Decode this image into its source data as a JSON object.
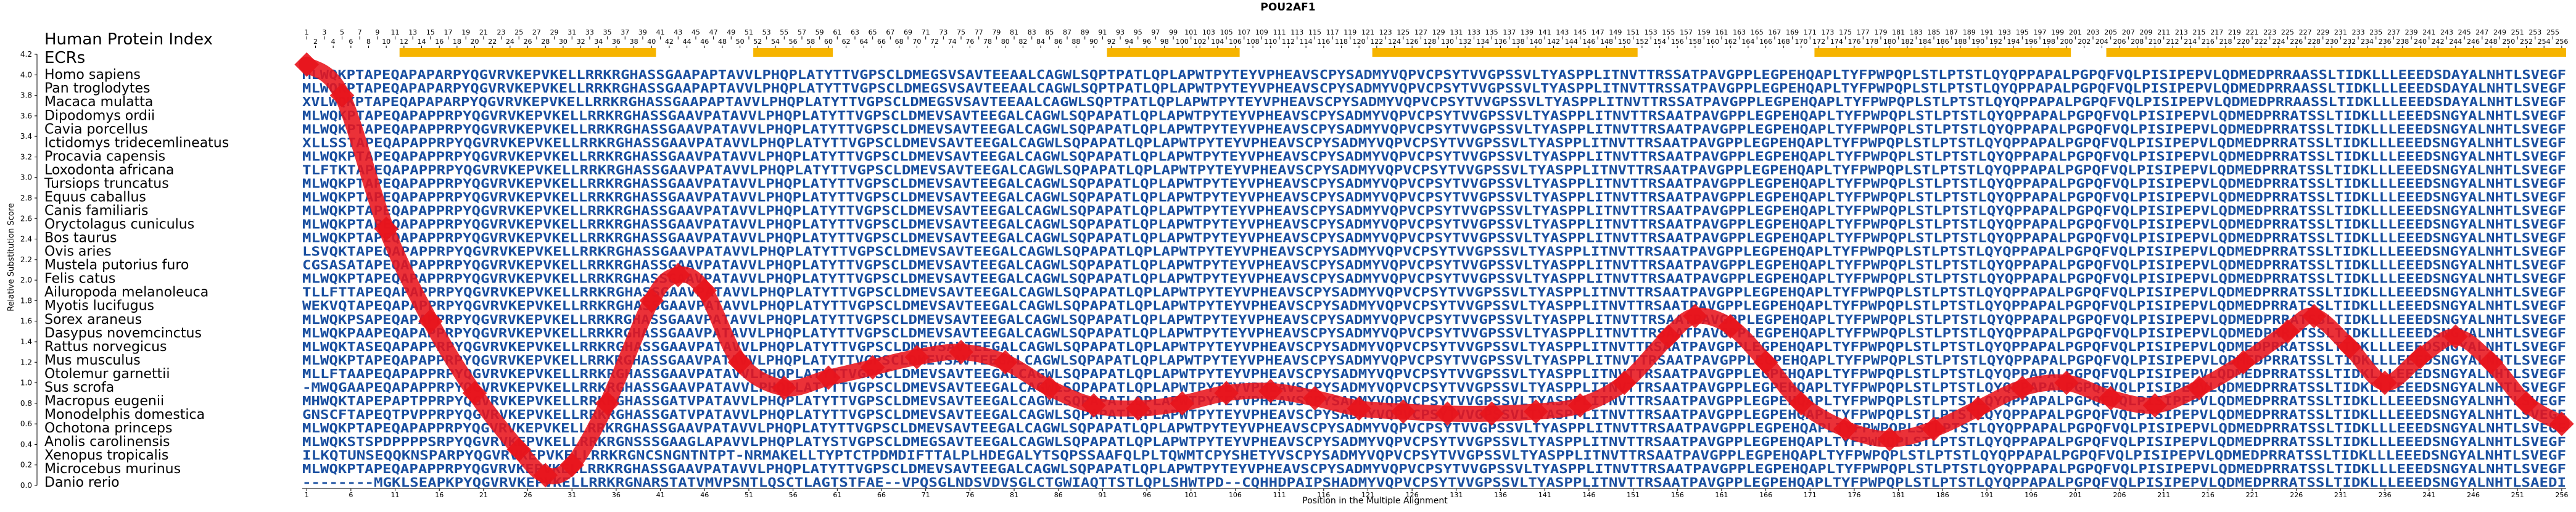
{
  "chart_data": {
    "type": "line",
    "title": "POU2AF1",
    "xlabel": "Position in the Multiple Alignment",
    "ylabel": "Relative Substitution Score",
    "xlim": [
      1,
      256
    ],
    "ylim": [
      0.0,
      4.2
    ],
    "grid": false,
    "top_label": "Human Protein Index",
    "ecr_label": "ECRs",
    "x_ticks": [
      1,
      6,
      11,
      16,
      21,
      26,
      31,
      36,
      41,
      46,
      51,
      56,
      61,
      66,
      71,
      76,
      81,
      86,
      91,
      96,
      101,
      106,
      111,
      116,
      121,
      126,
      131,
      136,
      141,
      146,
      151,
      156,
      161,
      166,
      171,
      176,
      181,
      186,
      191,
      196,
      201,
      206,
      211,
      216,
      221,
      226,
      231,
      236,
      241,
      246,
      251,
      256
    ],
    "y_ticks": [
      0.0,
      0.2,
      0.4,
      0.6,
      0.8,
      1.0,
      1.2,
      1.4,
      1.6,
      1.8,
      2.0,
      2.2,
      2.4,
      2.6,
      2.8,
      3.0,
      3.2,
      3.4,
      3.6,
      3.8,
      4.0,
      4.2
    ],
    "ecr_regions": [
      [
        12,
        40
      ],
      [
        52,
        60
      ],
      [
        92,
        106
      ],
      [
        122,
        151
      ],
      [
        172,
        200
      ],
      [
        205,
        256
      ]
    ],
    "score_curve": {
      "color": "#e8141c",
      "x": [
        1,
        5,
        10,
        15,
        20,
        25,
        28,
        31,
        35,
        40,
        43,
        46,
        50,
        55,
        60,
        65,
        70,
        75,
        80,
        85,
        90,
        95,
        100,
        105,
        110,
        115,
        120,
        125,
        130,
        135,
        140,
        145,
        150,
        155,
        158,
        162,
        166,
        170,
        175,
        180,
        185,
        190,
        195,
        200,
        205,
        210,
        215,
        220,
        225,
        228,
        232,
        236,
        240,
        244,
        248,
        252,
        256
      ],
      "y": [
        4.1,
        3.8,
        2.5,
        1.6,
        0.9,
        0.35,
        0.1,
        0.2,
        0.8,
        1.8,
        2.05,
        1.9,
        1.2,
        0.95,
        1.05,
        1.15,
        1.25,
        1.3,
        1.2,
        0.95,
        0.78,
        0.75,
        0.8,
        0.9,
        0.92,
        0.85,
        0.75,
        0.72,
        0.7,
        0.7,
        0.72,
        0.78,
        1.0,
        1.45,
        1.65,
        1.55,
        1.2,
        0.8,
        0.55,
        0.45,
        0.55,
        0.75,
        0.95,
        1.0,
        0.85,
        0.78,
        0.95,
        1.2,
        1.5,
        1.65,
        1.35,
        1.0,
        1.25,
        1.45,
        1.2,
        0.8,
        0.6
      ]
    },
    "species": [
      "Homo sapiens",
      "Pan troglodytes",
      "Macaca mulatta",
      "Dipodomys ordii",
      "Cavia porcellus",
      "Ictidomys tridecemlineatus",
      "Procavia capensis",
      "Loxodonta africana",
      "Tursiops truncatus",
      "Equus caballus",
      "Canis familiaris",
      "Oryctolagus cuniculus",
      "Bos taurus",
      "Ovis aries",
      "Mustela putorius furo",
      "Felis catus",
      "Ailuropoda melanoleuca",
      "Myotis lucifugus",
      "Sorex araneus",
      "Dasypus novemcinctus",
      "Rattus norvegicus",
      "Mus musculus",
      "Otolemur garnettii",
      "Sus scrofa",
      "Macropus eugenii",
      "Monodelphis domestica",
      "Ochotona princeps",
      "Anolis carolinensis",
      "Xenopus tropicalis",
      "Microcebus murinus",
      "Danio rerio"
    ],
    "sequences": [
      "MLWQKPTAPEQAPAPARPYQGVRVKEPVKELLRRKRGHASSGAAPAPTAVVLPHQPLATYTTVGPSCLDMEGSVSAVTEEAALCAGWLSQPTPATLQPLAPWTPYTEYVPHEAVSCPYSADMYVQPVCPSYTVVGPSSVLTYASPPLITNVTTRSSATPAVGPPLEGPEHQAPLTYFPWPQPLSTLPTSTLQYQPPAPALPGPQFVQLPISIPEPVLQDMEDPRRAASSLTIDKLLLEEEDSDAYALNHTLSVEGF",
      "MLWQKPTAPEQAPAPARPYQGVRVKEPVKELLRRKRGHASSGAAPAPTAVVLPHQPLATYTTVGPSCLDMEGSVSAVTEEAALCAGWLSQPTPATLQPLAPWTPYTEYVPHEAVSCPYSADMYVQPVCPSYTVVGPSSVLTYASPPLITNVTTRSSATPAVGPPLEGPEHQAPLTYFPWPQPLSTLPTSTLQYQPPAPALPGPQFVQLPISIPEPVLQDMEDPRRAASSLTIDKLLLEEEDSDAYALNHTLSVEGF",
      "XVLWQKPTAPEQAPAPARPYQGVRVKEPVKELLRRKRGHASSGAAPAPTAVVLPHQPLATYTTVGPSCLDMEGSVSAVTEEAALCAGWLSQPTPATLQPLAPWTPYTEYVPHEAVSCPYSADMYVQPVCPSYTVVGPSSVLTYASPPLITNVTTRSSATPAVGPPLEGPEHQAPLTYFPWPQPLSTLPTSTLQYQPPAPALPGPQFVQLPISIPEPVLQDMEDPRRAASSLTIDKLLLEEEDSDAYALNHTLSVEGF",
      "MLWQKPTAPEQAPAPPRPYQGVRVKEPVKELLRRKRGHASSGAAVPATAVVLPHQPLATYTTVGPSCLDMEVSAVTEEGALCAGWLSQPAPATLQPLAPWTPYTEYVPHEAVSCPYSADMYVQPVCPSYTVVGPSSVLTYASPPLITNVTTRSAATPAVGPPLEGPEHQAPLTYFPWPQPLSTLPTSTLQYQPPAPALPGPQFVQLPISIPEPVLQDMEDPRRATSSLTIDKLLLEEEDSNGYALNHTLSVEGF",
      "MLWQKPTAPEQAPAPPRPYQGVRVKEPVKELLRRKRGHASSGAAVPATAVVLPHQPLATYTTVGPSCLDMEVSAVTEEGALCAGWLSQPAPATLQPLAPWTPYTEYVPHEAVSCPYSADMYVQPVCPSYTVVGPSSVLTYASPPLITNVTTRSAATPAVGPPLEGPEHQAPLTYFPWPQPLSTLPTSTLQYQPPAPALPGPQFVQLPISIPEPVLQDMEDPRRATSSLTIDKLLLEEEDSNGYALNHTLSVEGF",
      "XLLSSTAPEQAPAPPRPYQGVRVKEPVKELLRRKRGHASSGAAVPATAVVLPHQPLATYTTVGPSCLDMEVSAVTEEGALCAGWLSQPAPATLQPLAPWTPYTEYVPHEAVSCPYSADMYVQPVCPSYTVVGPSSVLTYASPPLITNVTTRSAATPAVGPPLEGPEHQAPLTYFPWPQPLSTLPTSTLQYQPPAPALPGPQFVQLPISIPEPVLQDMEDPRRATSSLTIDKLLLEEEDSNGYALNHTLSVEGF",
      "MLWQKPTAPEQAPAPPRPYQGVRVKEPVKELLRRKRGHASSGAAVPATAVVLPHQPLATYTTVGPSCLDMEVSAVTEEGALCAGWLSQPAPATLQPLAPWTPYTEYVPHEAVSCPYSADMYVQPVCPSYTVVGPSSVLTYASPPLITNVTTRSAATPAVGPPLEGPEHQAPLTYFPWPQPLSTLPTSTLQYQPPAPALPGPQFVQLPISIPEPVLQDMEDPRRATSSLTIDKLLLEEEDSNGYALNHTLSVEGF",
      "TLFTKTAPEQAPAPPRPYQGVRVKEPVKELLRRKRGHASSGAAVPATAVVLPHQPLATYTTVGPSCLDMEVSAVTEEGALCAGWLSQPAPATLQPLAPWTPYTEYVPHEAVSCPYSADMYVQPVCPSYTVVGPSSVLTYASPPLITNVTTRSAATPAVGPPLEGPEHQAPLTYFPWPQPLSTLPTSTLQYQPPAPALPGPQFVQLPISIPEPVLQDMEDPRRATSSLTIDKLLLEEEDSNGYALNHTLSVEGF",
      "MLWQKPTAPEQAPAPPRPYQGVRVKEPVKELLRRKRGHASSGAAVPATAVVLPHQPLATYTTVGPSCLDMEVSAVTEEGALCAGWLSQPAPATLQPLAPWTPYTEYVPHEAVSCPYSADMYVQPVCPSYTVVGPSSVLTYASPPLITNVTTRSAATPAVGPPLEGPEHQAPLTYFPWPQPLSTLPTSTLQYQPPAPALPGPQFVQLPISIPEPVLQDMEDPRRATSSLTIDKLLLEEEDSNGYALNHTLSVEGF",
      "MLWQKPTAPEQAPAPPRPYQGVRVKEPVKELLRRKRGHASSGAAVPATAVVLPHQPLATYTTVGPSCLDMEVSAVTEEGALCAGWLSQPAPATLQPLAPWTPYTEYVPHEAVSCPYSADMYVQPVCPSYTVVGPSSVLTYASPPLITNVTTRSAATPAVGPPLEGPEHQAPLTYFPWPQPLSTLPTSTLQYQPPAPALPGPQFVQLPISIPEPVLQDMEDPRRATSSLTIDKLLLEEEDSNGYALNHTLSVEGF",
      "MLWQKPTAPEQAPAPPRPYQGVRVKEPVKELLRRKRGHASSGAAVPATAVVLPHQPLATYTTVGPSCLDMEVSAVTEEGALCAGWLSQPAPATLQPLAPWTPYTEYVPHEAVSCPYSADMYVQPVCPSYTVVGPSSVLTYASPPLITNVTTRSAATPAVGPPLEGPEHQAPLTYFPWPQPLSTLPTSTLQYQPPAPALPGPQFVQLPISIPEPVLQDMEDPRRATSSLTIDKLLLEEEDSNGYALNHTLSVEGF",
      "MLWQKPTAPEQAPAPPRPYQGVRVKEPVKELLRRKRGHASSGAAVPATAVVLPHQPLATYTTVGPSCLDMEVSAVTEEGALCAGWLSQPAPATLQPLAPWTPYTEYVPHEAVSCPYSADMYVQPVCPSYTVVGPSSVLTYASPPLITNVTTRSAATPAVGPPLEGPEHQAPLTYFPWPQPLSTLPTSTLQYQPPAPALPGPQFVQLPISIPEPVLQDMEDPRRATSSLTIDKLLLEEEDSNGYALNHTLSVEGF",
      "MLWQKPTAPEQAPAPPRPYQGVRVKEPVKELLRRKRGHASSGAAVPATAVVLPHQPLATYTTVGPSCLDMEVSAVTEEGALCAGWLSQPAPATLQPLAPWTPYTEYVPHEAVSCPYSADMYVQPVCPSYTVVGPSSVLTYASPPLITNVTTRSAATPAVGPPLEGPEHQAPLTYFPWPQPLSTLPTSTLQYQPPAPALPGPQFVQLPISIPEPVLQDMEDPRRATSSLTIDKLLLEEEDSNGYALNHTLSVEGF",
      "LSVQKTAPEQAPAPPRPYQGVRVKEPVKELLRRKRGHASSGAAVPATAVVLPHQPLATYTTVGPSCLDMEVSAVTEEGALCAGWLSQPAPATLQPLAPWTPYTEYVPHEAVSCPYSADMYVQPVCPSYTVVGPSSVLTYASPPLITNVTTRSAATPAVGPPLEGPEHQAPLTYFPWPQPLSTLPTSTLQYQPPAPALPGPQFVQLPISIPEPVLQDMEDPRRATSSLTIDKLLLEEEDSNGYALNHTLSVEGF",
      "CGSASATAPEQAPAPPRPYQGVRVKEPVKELLRRKRGHASSGAAVPATAVVLPHQPLATYTTVGPSCLDMEVSAVTEEGALCAGWLSQPAPATLQPLAPWTPYTEYVPHEAVSCPYSADMYVQPVCPSYTVVGPSSVLTYASPPLITNVTTRSAATPAVGPPLEGPEHQAPLTYFPWPQPLSTLPTSTLQYQPPAPALPGPQFVQLPISIPEPVLQDMEDPRRATSSLTIDKLLLEEEDSNGYALNHTLSVEGF",
      "MLWQKPTAPEQAPAPPRPYQGVRVKEPVKELLRRKRGHASSGAAVPATAVVLPHQPLATYTTVGPSCLDMEVSAVTEEGALCAGWLSQPAPATLQPLAPWTPYTEYVPHEAVSCPYSADMYVQPVCPSYTVVGPSSVLTYASPPLITNVTTRSAATPAVGPPLEGPEHQAPLTYFPWPQPLSTLPTSTLQYQPPAPALPGPQFVQLPISIPEPVLQDMEDPRRATSSLTIDKLLLEEEDSNGYALNHTLSVEGF",
      "TLLFTTAPEQAPAPPRPYQGVRVKEPVKELLRRKRGHASSGAAVPATAVVLPHQPLATYTTVGPSCLDMEVSAVTEEGALCAGWLSQPAPATLQPLAPWTPYTEYVPHEAVSCPYSADMYVQPVCPSYTVVGPSSVLTYASPPLITNVTTRSAATPAVGPPLEGPEHQAPLTYFPWPQPLSTLPTSTLQYQPPAPALPGPQFVQLPISIPEPVLQDMEDPRRATSSLTIDKLLLEEEDSNGYALNHTLSVEGF",
      "WEKVQTAPEQAPAPPRPYQGVRVKEPVKELLRRKRGHASSGAAVPATAVVLPHQPLATYTTVGPSCLDMEVSAVTEEGALCAGWLSQPAPATLQPLAPWTPYTEYVPHEAVSCPYSADMYVQPVCPSYTVVGPSSVLTYASPPLITNVTTRSAATPAVGPPLEGPEHQAPLTYFPWPQPLSTLPTSTLQYQPPAPALPGPQFVQLPISIPEPVLQDMEDPRRATSSLTIDKLLLEEEDSNGYALNHTLSVEGF",
      "MLWQKPSAPEQAPAPPRPYQGVRVKEPVKELLRRKRGHASSGAAVPATAVVLPHQPLATYTTVGPSCLDMEVSAVTEEGALCAGWLSQPAPATLQPLAPWTPYTEYVPHEAVSCPYSADMYVQPVCPSYTVVGPSSVLTYASPPLITNVTTRSAATPAVGPPLEGPEHQAPLTYFPWPQPLSTLPTSTLQYQPPAPALPGPQFVQLPISIPEPVLQDMEDPRRATSSLTIDKLLLEEEDSNGYALNHTLSVEGF",
      "MLWQKPAAPEQAPAPPRPYQGVRVKEPVKELLRRKRGHASSGAAVPATAVVLPHQPLATYTTVGPSCLDMEVSAVTEEGALCAGWLSQPAPATLQPLAPWTPYTEYVPHEAVSCPYSADMYVQPVCPSYTVVGPSSVLTYASPPLITNVTTRSAATPAVGPPLEGPEHQAPLTYFPWPQPLSTLPTSTLQYQPPAPALPGPQFVQLPISIPEPVLQDMEDPRRATSSLTIDKLLLEEEDSNGYALNHTLSVEGF",
      "MLWQKTASEQAPAPPRPYQGVRVKEPVKELLRRKRGHASSGAAVPATAVVLPHQPLATYTTVGPSCLDMEVSAVTEEGALCAGWLSQPAPATLQPLAPWTPYTEYVPHEAVSCPYSADMYVQPVCPSYTVVGPSSVLTYASPPLITNVTTRSAATPAVGPPLEGPEHQAPLTYFPWPQPLSTLPTSTLQYQPPAPALPGPQFVQLPISIPEPVLQDMEDPRRATSSLTIDKLLLEEEDSNGYALNHTLSVEGF",
      "MLWQKPTAPEQAPAPPRPYQGVRVKEPVKELLRRKRGHASSGAAVPATAVVLPHQPLATYTTVGPSCLDMEVSAVTEEGALCAGWLSQPAPATLQPLAPWTPYTEYVPHEAVSCPYSADMYVQPVCPSYTVVGPSSVLTYASPPLITNVTTRSAATPAVGPPLEGPEHQAPLTYFPWPQPLSTLPTSTLQYQPPAPALPGPQFVQLPISIPEPVLQDMEDPRRATSSLTIDKLLLEEEDSNGYALNHTLSVEGF",
      "MLLFTAAPEQAPAPPRPYQGVRVKEPVKELLRRKRGHASSGAAVPATAVVLPHQPLATYTTVGPSCLDMEVSAVTEEGALCAGWLSQPAPATLQPLAPWTPYTEYVPHEAVSCPYSADMYVQPVCPSYTVVGPSSVLTYASPPLITNVTTRSAATPAVGPPLEGPEHQAPLTYFPWPQPLSTLPTSTLQYQPPAPALPGPQFVQLPISIPEPVLQDMEDPRRATSSLTIDKLLLEEEDSNGYALNHTLSVEGF",
      "-MWQGAAPEQAPAPPRPYQGVRVKEPVKELLRRKRGHASSGAAVPATAVVLPHQPLATYTTVGPSCLDMEVSAVTEEGALCAGWLSQPAPATLQPLAPWTPYTEYVPHEAVSCPYSADMYVQPVCPSYTVVGPSSVLTYASPPLITNVTTRSAATPAVGPPLEGPEHQAPLTYFPWPQPLSTLPTSTLQYQPPAPALPGPQFVQLPISIPEPVLQDMEDPRRATSSLTIDKLLLEEEDSNGYALNHTLSVEGF",
      "MHWQKTAPEPAPTPPRPYQGVRVKEPVKELLRRKRGHASSGATVPATAVVLPHQPLATYTTVGPSCLDMEVSAVTEEGALCAGWLSQPAPATLQPLAPWTPYTEYVPHEAVSCPYSADMYVQPVCPSYTVVGPSSVLTYASPPLITNVTTRSAATPAVGPPLEGPEHQAPLTYFPWPQPLSTLPTSTLQYQPPAPALPGPQFVQLPISIPEPVLQDMEDPRRATSSLTIDKLLLEEEDSNGYALNHTLSVEGF",
      "GNSCFTAPEQTPVPPRPYQGVRVKEPVKELLRRKRGHASSGATVPATAVVLPHQPLATYTTVGPSCLDMEVSAVTEEGALCAGWLSQPAPATLQPLAPWTPYTEYVPHEAVSCPYSADMYVQPVCPSYTVVGPSSVLTYASPPLITNVTTRSAATPAVGPPLEGPEHQAPLTYFPWPQPLSTLPTSTLQYQPPAPALPGPQFVQLPISIPEPVLQDMEDPRRATSSLTIDKLLLEEEDSNGYALNHTLSVEGF",
      "MLWQKPTAPEQAPAPPRPYQGVRVKEPVKELLRRKRGHASSGAAVPATAVVLPHQPLATYTTVGPSCLDMEVSAVTEEGALCAGWLSQPAPATLQPLAPWTPYTEYVPHEAVSCPYSADMYVQPVCPSYTVVGPSSVLTYASPPLITNVTTRSAATPAVGPPLEGPEHQAPLTYFPWPQPLSTLPTSTLQYQPPAPALPGPQFVQLPISIPEPVLQDMEDPRRATSSLTIDKLLLEEEDSNGYALNHTLSVEGF",
      "MLWQKSTSPDPPPPSRPYQGVRVKEPVKELLRRKRGNSSSGAAGLAPAVVLPHQPLATYSTVGPSCLDMEGSAVTEEGALCAGWLSQPAPATLQPLAPWTPYTEYVPHEAVSCPYSADMYVQPVCPSYTVVGPSSVLTYASPPLITNVTTRSAATPAVGPPLEGPEHQAPLTYFPWPQPLSTLPTSTLQYQPPAPALPGPQFVQLPISIPEPVLQDMEDPRRATSSLTIDKLLLEEEDSNGYALNHTLSVEGF",
      "ILKQTUNSEQQKNSPARPYQGVRVKEPVKELLRRKRGNCSNGNTNTPT-NRMAKELLTYPTCTPDMDIFTTALPLHDEGALYTSQPSSAAFQLPLTQWMTCPYSHETYVSCPYSADMYVQPVCPSYTVVGPSSVLTYASPPLITNVTTRSAATPAVGPPLEGPEHQAPLTYFPWPQPLSTLPTSTLQYQPPAPALPGPQFVQLPISIPEPVLQDMEDPRRATSSLTIDKLLLEEEDSNGYALNHTLSVEGF",
      "MLWQKPTAPEQAPAPPRPYQGVRVKEPVKELLRRKRGHASSGAAVPATAVVLPHQPLATYTTVGPSCLDMEVSAVTEEGALCAGWLSQPAPATLQPLAPWTPYTEYVPHEAVSCPYSADMYVQPVCPSYTVVGPSSVLTYASPPLITNVTTRSAATPAVGPPLEGPEHQAPLTYFPWPQPLSTLPTSTLQYQPPAPALPGPQFVQLPISIPEPVLQDMEDPRRATSSLTIDKLLLEEEDSNGYALNHTLSVEGF",
      "--------MGKLSEAPKPYQGVRVKEPVKELLRRKRGNARSTATVMVPSNTLQSCTLAGTSTFAE--VPQSGLNDSVDVSGLCTGWIAQTTSTLQPLSHWTPD--CQHHDPAIPSHADMYVQPVCPSYTVVGPSSVLTYASPPLITNVTTRSAATPAVGPPLEGPEHQAPLTYFPWPQPLSTLPTSTLQYQPPAPALPGPQFVQLPISIPEPVLQDMEDPRRATSSLTIDKLLLEEEDSNGYALNHTLSAEDI"
    ]
  }
}
